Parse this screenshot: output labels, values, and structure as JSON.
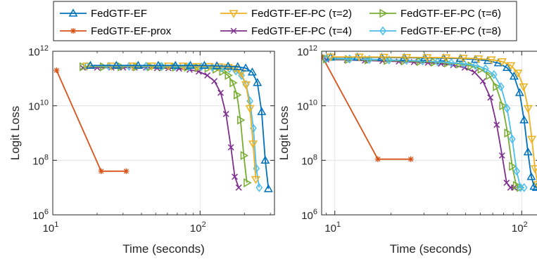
{
  "legend": {
    "entries": [
      {
        "label": "FedGTF-EF",
        "color": "#0072BD",
        "marker": "triangle-up"
      },
      {
        "label": "FedGTF-EF-prox",
        "color": "#D95319",
        "marker": "asterisk"
      },
      {
        "label": "FedGTF-EF-PC (τ=2)",
        "color": "#EDB120",
        "marker": "triangle-down"
      },
      {
        "label": "FedGTF-EF-PC (τ=4)",
        "color": "#7E2F8E",
        "marker": "x"
      },
      {
        "label": "FedGTF-EF-PC (τ=6)",
        "color": "#77AC30",
        "marker": "triangle-right"
      },
      {
        "label": "FedGTF-EF-PC (τ=8)",
        "color": "#4DBEEE",
        "marker": "diamond"
      }
    ]
  },
  "chart_data": [
    {
      "type": "line",
      "xscale": "log",
      "yscale": "log",
      "xlim": [
        10,
        320
      ],
      "ylim": [
        1000000.0,
        1000000000000.0
      ],
      "xlabel": "Time (seconds)",
      "ylabel": "Logit Loss",
      "xticks": [
        {
          "value": 10,
          "base": "10",
          "exp": "1"
        },
        {
          "value": 100,
          "base": "10",
          "exp": "2"
        }
      ],
      "yticks": [
        {
          "value": 1000000.0,
          "base": "10",
          "exp": "6"
        },
        {
          "value": 100000000.0,
          "base": "10",
          "exp": "8"
        },
        {
          "value": 10000000000.0,
          "base": "10",
          "exp": "10"
        },
        {
          "value": 1000000000000.0,
          "base": "10",
          "exp": "12"
        }
      ],
      "grid": true,
      "series": [
        {
          "name": "FedGTF-EF-prox",
          "x": [
            10.6,
            21.3,
            31.5
          ],
          "y": [
            200000000000.0,
            40000000.0,
            40000000.0
          ]
        },
        {
          "name": "FedGTF-EF-PC (τ=4)",
          "x": [
            16,
            20,
            25,
            30,
            36,
            43,
            51,
            61,
            72,
            85,
            98,
            112,
            125,
            138,
            150,
            162,
            172,
            183
          ],
          "y": [
            250000000000.0,
            250000000000.0,
            250000000000.0,
            250000000000.0,
            250000000000.0,
            250000000000.0,
            240000000000.0,
            240000000000.0,
            230000000000.0,
            210000000000.0,
            180000000000.0,
            130000000000.0,
            80000000000.0,
            30000000000.0,
            5000000000.0,
            300000000.0,
            25000000.0,
            10000000.0
          ]
        },
        {
          "name": "FedGTF-EF-PC (τ=6)",
          "x": [
            16,
            22,
            29,
            37,
            46,
            56,
            68,
            82,
            97,
            113,
            128,
            142,
            155,
            167,
            178,
            188,
            198,
            208
          ],
          "y": [
            270000000000.0,
            270000000000.0,
            270000000000.0,
            270000000000.0,
            270000000000.0,
            270000000000.0,
            260000000000.0,
            260000000000.0,
            250000000000.0,
            240000000000.0,
            220000000000.0,
            180000000000.0,
            130000000000.0,
            70000000000.0,
            25000000000.0,
            3000000000.0,
            150000000.0,
            15000000.0
          ]
        },
        {
          "name": "FedGTF-EF-PC (τ=8)",
          "x": [
            17,
            24,
            33,
            43,
            55,
            68,
            84,
            102,
            121,
            140,
            158,
            175,
            191,
            205,
            218,
            230,
            241,
            252
          ],
          "y": [
            280000000000.0,
            280000000000.0,
            280000000000.0,
            280000000000.0,
            280000000000.0,
            280000000000.0,
            270000000000.0,
            270000000000.0,
            260000000000.0,
            250000000000.0,
            230000000000.0,
            190000000000.0,
            130000000000.0,
            60000000000.0,
            15000000000.0,
            1500000000.0,
            50000000.0,
            10000000.0
          ]
        },
        {
          "name": "FedGTF-EF-PC (τ=2)",
          "x": [
            17,
            25,
            35,
            47,
            61,
            77,
            95,
            115,
            135,
            155,
            173,
            190,
            205,
            218,
            229,
            239
          ],
          "y": [
            290000000000.0,
            290000000000.0,
            290000000000.0,
            290000000000.0,
            290000000000.0,
            290000000000.0,
            280000000000.0,
            280000000000.0,
            270000000000.0,
            260000000000.0,
            230000000000.0,
            160000000000.0,
            60000000000.0,
            8000000000.0,
            400000000.0,
            20000000.0
          ]
        },
        {
          "name": "FedGTF-EF",
          "x": [
            18,
            27,
            38,
            52,
            68,
            86,
            107,
            130,
            155,
            180,
            204,
            226,
            245,
            262,
            277,
            291
          ],
          "y": [
            300000000000.0,
            300000000000.0,
            300000000000.0,
            300000000000.0,
            300000000000.0,
            300000000000.0,
            300000000000.0,
            290000000000.0,
            280000000000.0,
            270000000000.0,
            240000000000.0,
            170000000000.0,
            70000000000.0,
            6000000000.0,
            100000000.0,
            9000000.0
          ]
        }
      ]
    },
    {
      "type": "line",
      "xscale": "log",
      "yscale": "log",
      "xlim": [
        8.5,
        125
      ],
      "ylim": [
        1000000.0,
        1000000000000.0
      ],
      "xlabel": "Time (seconds)",
      "ylabel": "Logit Loss",
      "xticks": [
        {
          "value": 10,
          "base": "10",
          "exp": "1"
        },
        {
          "value": 100,
          "base": "10",
          "exp": "2"
        }
      ],
      "yticks": [
        {
          "value": 1000000.0,
          "base": "10",
          "exp": "6"
        },
        {
          "value": 100000000.0,
          "base": "10",
          "exp": "8"
        },
        {
          "value": 10000000000.0,
          "base": "10",
          "exp": "10"
        },
        {
          "value": 1000000000000.0,
          "base": "10",
          "exp": "12"
        }
      ],
      "grid": true,
      "series": [
        {
          "name": "FedGTF-EF-prox",
          "x": [
            8.6,
            17,
            25.5
          ],
          "y": [
            600000000000.0,
            110000000.0,
            110000000.0
          ]
        },
        {
          "name": "FedGTF-EF-PC (τ=4)",
          "x": [
            9,
            11.6,
            14.5,
            18,
            22,
            26.5,
            31.5,
            37,
            43,
            49.5,
            56,
            62,
            68,
            73.5,
            78.5,
            83,
            87,
            91
          ],
          "y": [
            500000000000.0,
            480000000000.0,
            460000000000.0,
            440000000000.0,
            420000000000.0,
            400000000000.0,
            380000000000.0,
            350000000000.0,
            310000000000.0,
            250000000000.0,
            170000000000.0,
            80000000000.0,
            20000000000.0,
            2000000000.0,
            150000000.0,
            15000000.0,
            10000000.0,
            10000000.0
          ]
        },
        {
          "name": "FedGTF-EF-PC (τ=6)",
          "x": [
            9,
            11.8,
            15,
            19,
            23.5,
            28.5,
            34,
            40,
            46.5,
            53.5,
            60.5,
            67,
            73,
            79,
            84,
            89,
            93.5,
            98
          ],
          "y": [
            520000000000.0,
            500000000000.0,
            480000000000.0,
            460000000000.0,
            440000000000.0,
            420000000000.0,
            400000000000.0,
            370000000000.0,
            340000000000.0,
            290000000000.0,
            220000000000.0,
            130000000000.0,
            50000000000.0,
            10000000000.0,
            1000000000.0,
            60000000.0,
            12000000.0,
            10000000.0
          ]
        },
        {
          "name": "FedGTF-EF-PC (τ=8)",
          "x": [
            9,
            12,
            15.3,
            19.5,
            24.2,
            29.5,
            35.5,
            42,
            49,
            56.5,
            64,
            71,
            77.5,
            83.5,
            89,
            94,
            98.5,
            103
          ],
          "y": [
            540000000000.0,
            520000000000.0,
            500000000000.0,
            480000000000.0,
            460000000000.0,
            440000000000.0,
            410000000000.0,
            380000000000.0,
            350000000000.0,
            300000000000.0,
            230000000000.0,
            140000000000.0,
            50000000000.0,
            8000000000.0,
            600000000.0,
            40000000.0,
            10000000.0,
            10000000.0
          ]
        },
        {
          "name": "FedGTF-EF",
          "x": [
            9.5,
            13.2,
            17.8,
            23.5,
            30.3,
            38.2,
            47,
            56.5,
            66,
            75,
            83.5,
            91,
            97.5,
            103,
            108,
            112.5,
            116.5,
            120
          ],
          "y": [
            600000000000.0,
            600000000000.0,
            590000000000.0,
            580000000000.0,
            570000000000.0,
            560000000000.0,
            540000000000.0,
            500000000000.0,
            450000000000.0,
            370000000000.0,
            250000000000.0,
            120000000000.0,
            30000000000.0,
            3000000000.0,
            200000000.0,
            25000000.0,
            11000000.0,
            10000000.0
          ]
        },
        {
          "name": "FedGTF-EF-PC (τ=2)",
          "x": [
            9.5,
            13.5,
            18.3,
            24.2,
            31.2,
            39.4,
            48.7,
            58.7,
            68.8,
            78.5,
            87.5,
            95.5,
            102.3,
            108.2,
            113.3,
            117.8,
            121.8,
            125.3
          ],
          "y": [
            620000000000.0,
            620000000000.0,
            610000000000.0,
            600000000000.0,
            590000000000.0,
            580000000000.0,
            560000000000.0,
            530000000000.0,
            490000000000.0,
            420000000000.0,
            300000000000.0,
            160000000000.0,
            50000000000.0,
            8000000000.0,
            600000000.0,
            50000000.0,
            13000000.0,
            10000000.0
          ]
        }
      ]
    }
  ]
}
